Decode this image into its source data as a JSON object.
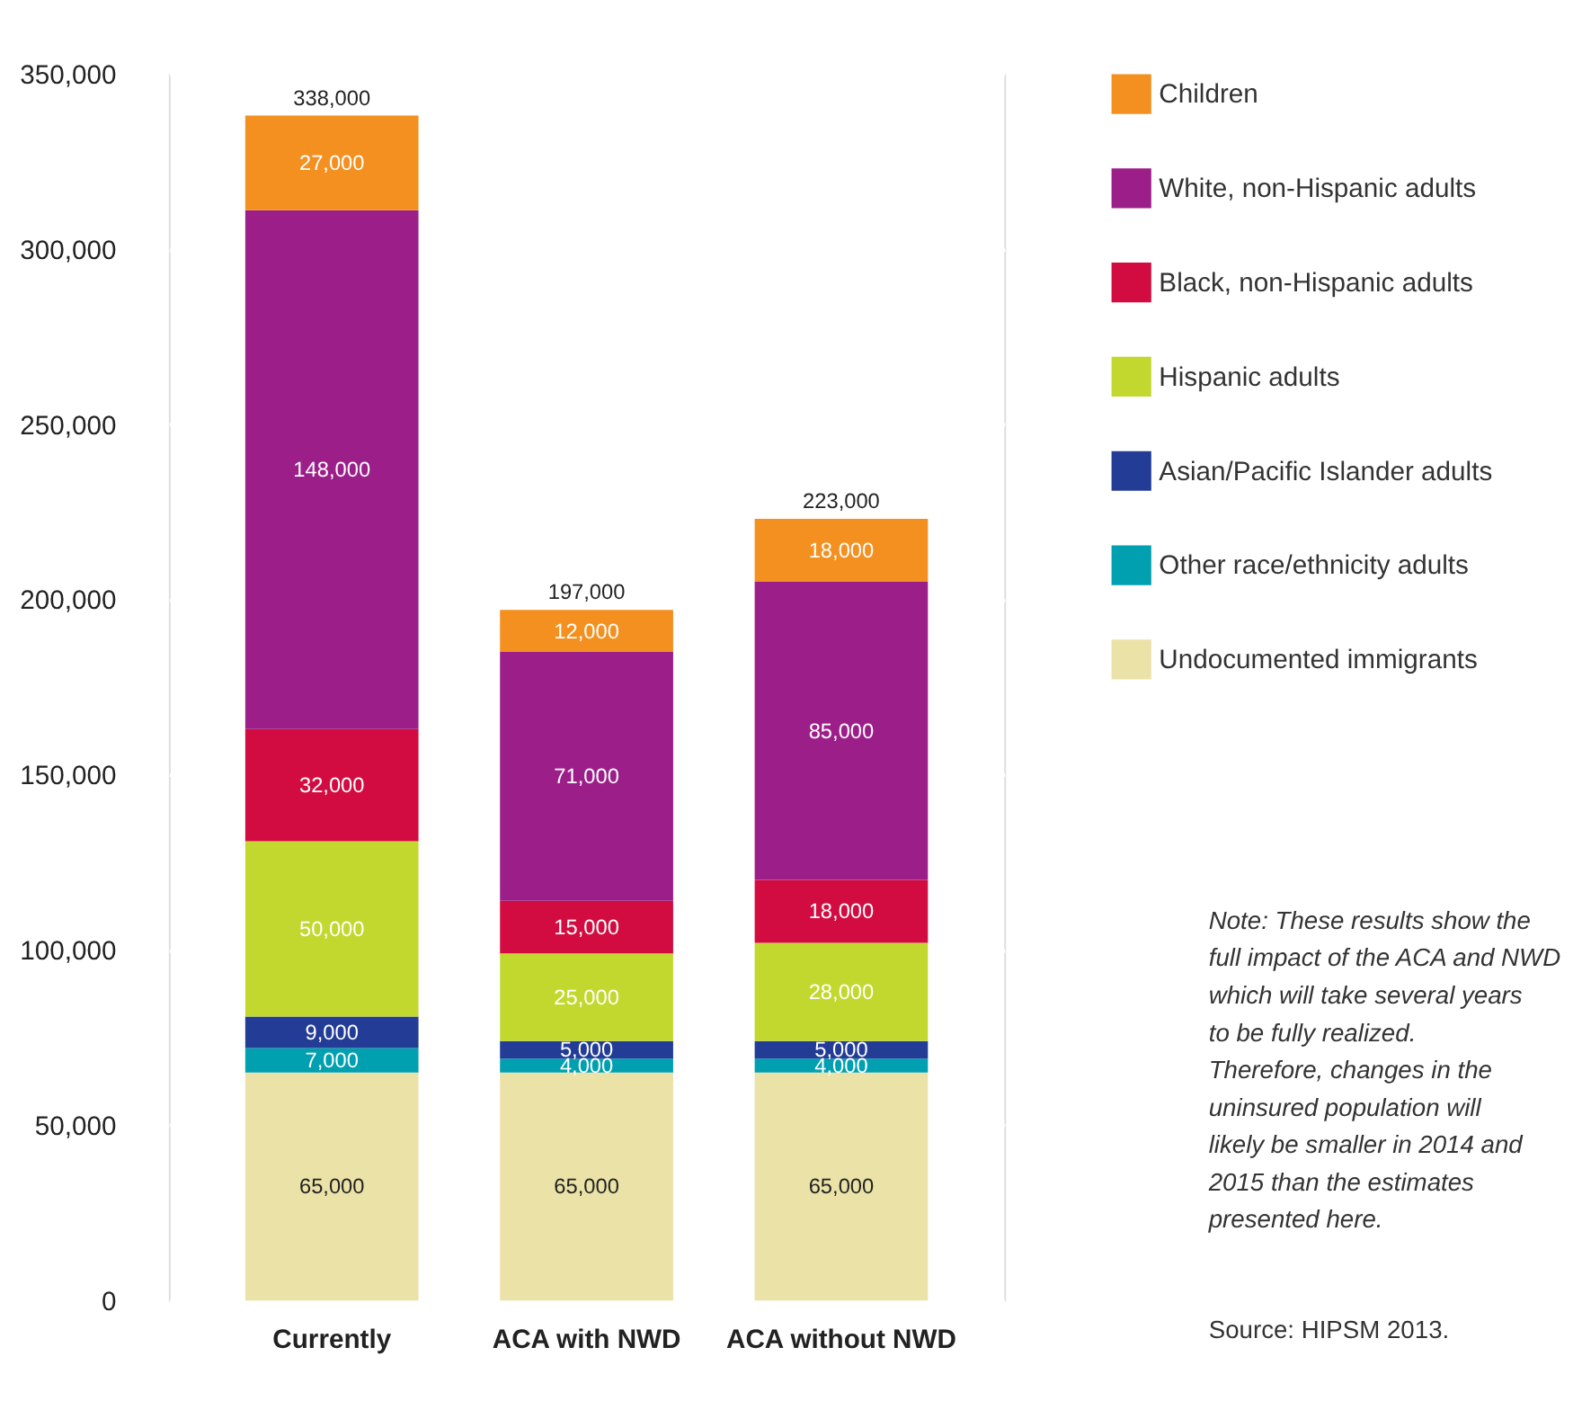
{
  "chart_data": {
    "type": "bar",
    "stacked": true,
    "categories": [
      "Currently",
      "ACA with NWD",
      "ACA without NWD"
    ],
    "series": [
      {
        "name": "Undocumented immigrants",
        "color": "#ebe2a8",
        "values": [
          65000,
          65000,
          65000
        ],
        "value_labels": [
          "65,000",
          "65,000",
          "65,000"
        ]
      },
      {
        "name": "Other race/ethnicity adults",
        "color": "#00a0b0",
        "values": [
          7000,
          4000,
          4000
        ],
        "value_labels": [
          "7,000",
          "4,000",
          "4,000"
        ]
      },
      {
        "name": "Asian/Pacific Islander adults",
        "color": "#233c96",
        "values": [
          9000,
          5000,
          5000
        ],
        "value_labels": [
          "9,000",
          "5,000",
          "5,000"
        ]
      },
      {
        "name": "Hispanic adults",
        "color": "#c2d82e",
        "values": [
          50000,
          25000,
          28000
        ],
        "value_labels": [
          "50,000",
          "25,000",
          "28,000"
        ]
      },
      {
        "name": "Black, non-Hispanic adults",
        "color": "#d20c40",
        "values": [
          32000,
          15000,
          18000
        ],
        "value_labels": [
          "32,000",
          "15,000",
          "18,000"
        ]
      },
      {
        "name": "White, non-Hispanic adults",
        "color": "#9c1f89",
        "values": [
          148000,
          71000,
          85000
        ],
        "value_labels": [
          "148,000",
          "71,000",
          "85,000"
        ]
      },
      {
        "name": "Children",
        "color": "#f39020",
        "values": [
          27000,
          12000,
          18000
        ],
        "value_labels": [
          "27,000",
          "12,000",
          "18,000"
        ]
      }
    ],
    "totals": [
      "338,000",
      "197,000",
      "223,000"
    ],
    "ylim": [
      0,
      350000
    ],
    "yticks": [
      {
        "value": 0,
        "label": "0"
      },
      {
        "value": 50000,
        "label": "50,000"
      },
      {
        "value": 100000,
        "label": "100,000"
      },
      {
        "value": 150000,
        "label": "150,000"
      },
      {
        "value": 200000,
        "label": "200,000"
      },
      {
        "value": 250000,
        "label": "250,000"
      },
      {
        "value": 300000,
        "label": "300,000"
      },
      {
        "value": 350000,
        "label": "350,000"
      }
    ],
    "grid": "y",
    "legend": "right",
    "annotations": [
      "Note: These results show the full impact of the ACA and NWD which will take several years to be fully realized. Therefore, changes in the uninsured population will likely be smaller in 2014 and 2015 than the estimates presented here.",
      "Source: HIPSM 2013."
    ]
  }
}
